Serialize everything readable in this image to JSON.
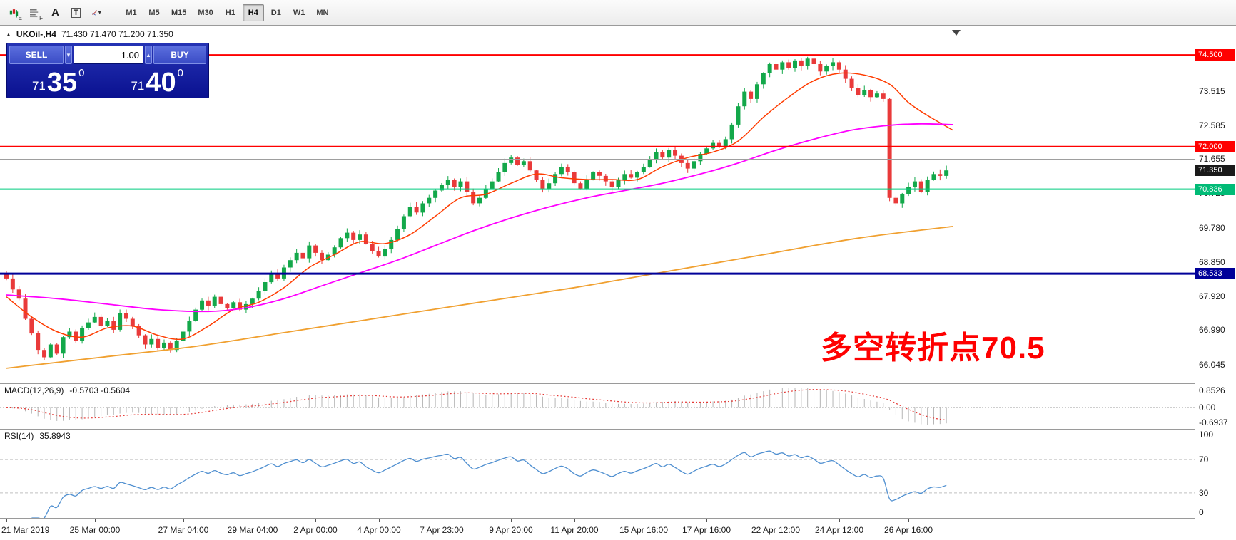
{
  "toolbar": {
    "icon_glyphs": {
      "annotate": "A",
      "text_tool": "T",
      "sub_e": "E",
      "sub_f": "F",
      "caret": "▾"
    },
    "timeframes": [
      "M1",
      "M5",
      "M15",
      "M30",
      "H1",
      "H4",
      "D1",
      "W1",
      "MN"
    ],
    "active_timeframe": "H4"
  },
  "chart": {
    "symbol_line": {
      "expand_marker": "▲",
      "symbol": "UKOil-,H4",
      "ohlc": "71.430 71.470 71.200 71.350"
    },
    "trade_panel": {
      "sell_label": "SELL",
      "buy_label": "BUY",
      "volume": "1.00",
      "spinner_down": "▼",
      "spinner_up": "▲",
      "sell_price": {
        "small": "71",
        "big": "35",
        "sup": "0"
      },
      "buy_price": {
        "small": "71",
        "big": "40",
        "sup": "0"
      }
    },
    "annotation": {
      "text": "多空转折点70.5",
      "color": "#ff0000"
    },
    "price_axis": {
      "ticks": [
        "73.515",
        "72.585",
        "71.655",
        "70.725",
        "69.780",
        "68.850",
        "67.920",
        "66.990",
        "66.045"
      ],
      "badges": [
        {
          "value": "74.500",
          "bg": "#ff0000"
        },
        {
          "value": "72.000",
          "bg": "#ff0000"
        },
        {
          "value": "71.350",
          "bg": "#1a1a1a"
        },
        {
          "value": "70.836",
          "bg": "#00bb76"
        },
        {
          "value": "68.533",
          "bg": "#000099"
        }
      ]
    },
    "time_axis": [
      {
        "bar": 0,
        "label": "21 Mar 2019"
      },
      {
        "bar": 14,
        "label": "25 Mar 00:00"
      },
      {
        "bar": 28,
        "label": "27 Mar 04:00"
      },
      {
        "bar": 39,
        "label": "29 Mar 04:00"
      },
      {
        "bar": 49,
        "label": "2 Apr 00:00"
      },
      {
        "bar": 59,
        "label": "4 Apr 00:00"
      },
      {
        "bar": 69,
        "label": "7 Apr 23:00"
      },
      {
        "bar": 80,
        "label": "9 Apr 20:00"
      },
      {
        "bar": 90,
        "label": "11 Apr 20:00"
      },
      {
        "bar": 101,
        "label": "15 Apr 16:00"
      },
      {
        "bar": 111,
        "label": "17 Apr 16:00"
      },
      {
        "bar": 122,
        "label": "22 Apr 12:00"
      },
      {
        "bar": 132,
        "label": "24 Apr 12:00"
      },
      {
        "bar": 143,
        "label": "26 Apr 16:00"
      }
    ]
  },
  "chart_data": {
    "type": "candlestick",
    "symbol": "UKOil-",
    "timeframe": "H4",
    "first_open": 68.55,
    "price_range": {
      "min": 65.54,
      "max": 75.3
    },
    "closes": [
      68.4,
      68.1,
      67.85,
      67.3,
      66.9,
      66.45,
      66.25,
      66.6,
      66.35,
      66.8,
      66.95,
      66.7,
      67.05,
      67.2,
      67.35,
      67.1,
      67.25,
      67.0,
      67.45,
      67.3,
      67.1,
      66.85,
      66.6,
      66.75,
      66.5,
      66.65,
      66.45,
      66.7,
      66.95,
      67.25,
      67.55,
      67.8,
      67.65,
      67.9,
      67.7,
      67.6,
      67.75,
      67.55,
      67.7,
      67.85,
      68.05,
      68.3,
      68.55,
      68.4,
      68.7,
      68.9,
      69.1,
      68.95,
      69.3,
      69.1,
      68.9,
      69.05,
      69.25,
      69.5,
      69.65,
      69.45,
      69.6,
      69.35,
      69.15,
      69.0,
      69.2,
      69.45,
      69.75,
      70.1,
      70.35,
      70.2,
      70.45,
      70.6,
      70.8,
      70.95,
      71.1,
      70.9,
      71.05,
      70.75,
      70.45,
      70.6,
      70.85,
      71.05,
      71.3,
      71.55,
      71.7,
      71.5,
      71.6,
      71.35,
      71.1,
      70.85,
      71.0,
      71.25,
      71.45,
      71.3,
      71.0,
      70.85,
      71.1,
      71.3,
      71.2,
      71.05,
      70.9,
      71.1,
      71.25,
      71.15,
      71.3,
      71.45,
      71.65,
      71.85,
      71.7,
      71.9,
      71.75,
      71.55,
      71.4,
      71.6,
      71.8,
      71.95,
      72.1,
      72.0,
      72.2,
      72.6,
      73.1,
      73.5,
      73.3,
      73.7,
      74.0,
      74.25,
      74.1,
      74.3,
      74.15,
      74.35,
      74.2,
      74.4,
      74.25,
      74.05,
      74.2,
      74.3,
      74.1,
      73.85,
      73.6,
      73.4,
      73.55,
      73.35,
      73.45,
      73.3,
      70.6,
      70.45,
      70.7,
      70.9,
      71.05,
      70.75,
      71.1,
      71.25,
      71.2,
      71.35
    ],
    "hlines": [
      {
        "price": 74.5,
        "color": "#ff0000",
        "width": 2
      },
      {
        "price": 72.0,
        "color": "#ff0000",
        "width": 2
      },
      {
        "price": 71.655,
        "color": "#9e9e9e",
        "width": 1
      },
      {
        "price": 70.836,
        "color": "#00cc7f",
        "width": 2
      },
      {
        "price": 68.533,
        "color": "#000099",
        "width": 3
      }
    ],
    "moving_averages": [
      {
        "name": "ma-fast-red",
        "color": "#ff3c00",
        "width": 1.5,
        "anchors": [
          [
            0,
            67.9
          ],
          [
            4,
            67.35
          ],
          [
            8,
            66.95
          ],
          [
            12,
            66.8
          ],
          [
            16,
            67.05
          ],
          [
            20,
            67.1
          ],
          [
            24,
            66.85
          ],
          [
            28,
            66.75
          ],
          [
            32,
            67.1
          ],
          [
            36,
            67.55
          ],
          [
            40,
            67.75
          ],
          [
            44,
            68.15
          ],
          [
            48,
            68.7
          ],
          [
            52,
            69.05
          ],
          [
            56,
            69.4
          ],
          [
            60,
            69.35
          ],
          [
            64,
            69.6
          ],
          [
            68,
            70.1
          ],
          [
            72,
            70.6
          ],
          [
            76,
            70.7
          ],
          [
            80,
            71.0
          ],
          [
            84,
            71.25
          ],
          [
            88,
            71.15
          ],
          [
            92,
            71.1
          ],
          [
            96,
            71.1
          ],
          [
            100,
            71.1
          ],
          [
            104,
            71.45
          ],
          [
            108,
            71.7
          ],
          [
            112,
            71.85
          ],
          [
            116,
            72.15
          ],
          [
            120,
            72.8
          ],
          [
            124,
            73.35
          ],
          [
            128,
            73.8
          ],
          [
            132,
            74.0
          ],
          [
            136,
            73.95
          ],
          [
            140,
            73.7
          ],
          [
            143,
            73.2
          ],
          [
            146,
            72.85
          ],
          [
            150,
            72.45
          ]
        ]
      },
      {
        "name": "ma-mid-magenta",
        "color": "#ff00ff",
        "width": 1.8,
        "anchors": [
          [
            0,
            67.95
          ],
          [
            8,
            67.85
          ],
          [
            16,
            67.7
          ],
          [
            24,
            67.55
          ],
          [
            32,
            67.5
          ],
          [
            38,
            67.6
          ],
          [
            44,
            67.85
          ],
          [
            50,
            68.2
          ],
          [
            56,
            68.55
          ],
          [
            62,
            68.9
          ],
          [
            68,
            69.3
          ],
          [
            74,
            69.7
          ],
          [
            80,
            70.05
          ],
          [
            86,
            70.35
          ],
          [
            92,
            70.6
          ],
          [
            98,
            70.8
          ],
          [
            104,
            71.0
          ],
          [
            110,
            71.25
          ],
          [
            116,
            71.55
          ],
          [
            122,
            71.9
          ],
          [
            128,
            72.2
          ],
          [
            134,
            72.45
          ],
          [
            140,
            72.58
          ],
          [
            145,
            72.62
          ],
          [
            150,
            72.6
          ]
        ]
      },
      {
        "name": "ma-slow-orange",
        "color": "#f0a030",
        "width": 1.8,
        "anchors": [
          [
            0,
            65.95
          ],
          [
            15,
            66.25
          ],
          [
            30,
            66.55
          ],
          [
            45,
            66.95
          ],
          [
            60,
            67.35
          ],
          [
            75,
            67.75
          ],
          [
            90,
            68.15
          ],
          [
            105,
            68.6
          ],
          [
            120,
            69.05
          ],
          [
            135,
            69.5
          ],
          [
            150,
            69.82
          ]
        ]
      }
    ],
    "indicators": {
      "macd": {
        "label": "MACD(12,26,9)",
        "values_text": "-0.5703 -0.5604",
        "fast": 12,
        "slow": 26,
        "signal": 9,
        "scale_labels": [
          "0.8526",
          "0.00",
          "-0.6937"
        ],
        "histogram_color": "#b5b5b5",
        "signal_color": "#e53935"
      },
      "rsi": {
        "label": "RSI(14)",
        "value_text": "35.8943",
        "period": 14,
        "levels": [
          70,
          30
        ],
        "scale_labels": [
          "100",
          "70",
          "30",
          "0"
        ],
        "line_color": "#4f8fd0",
        "level_color": "#c0c0c0"
      }
    }
  },
  "colors": {
    "candle_up": "#13a84a",
    "candle_down": "#e93a3a"
  }
}
